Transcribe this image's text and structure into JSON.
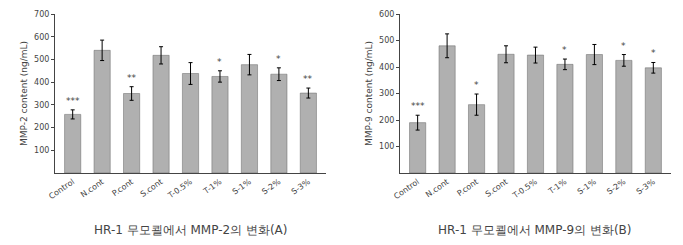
{
  "chart_data": [
    {
      "type": "bar",
      "title": "HR-1 무모쾰에서 MMP-2의 변화(A)",
      "y_label": "MMP-2 content (ng/mL)",
      "categories": [
        "Control",
        "N.cont",
        "P.cont",
        "S.cont",
        "T-0.5%",
        "T-1%",
        "S-1%",
        "S-2%",
        "S-3%"
      ],
      "values": [
        258,
        540,
        350,
        518,
        438,
        425,
        477,
        435,
        352
      ],
      "errors": [
        20,
        45,
        30,
        38,
        48,
        25,
        45,
        28,
        22
      ],
      "annotations": [
        "***",
        null,
        "**",
        null,
        null,
        "*",
        null,
        "*",
        "**"
      ],
      "color": "#b0b0b0",
      "ylim": [
        0,
        700
      ],
      "yticks": [
        100,
        200,
        300,
        400,
        500,
        600,
        700
      ],
      "grid": false
    },
    {
      "type": "bar",
      "title": "HR-1 무모쾰에서 MMP-9의 변화(B)",
      "y_label": "MMP-9 content (ng/mL)",
      "categories": [
        "Control",
        "N.cont",
        "P.cont",
        "S.cont",
        "T-0.5%",
        "T-1%",
        "S-1%",
        "S-2%",
        "S-3%"
      ],
      "values": [
        190,
        480,
        258,
        448,
        445,
        410,
        447,
        425,
        397
      ],
      "errors": [
        28,
        45,
        40,
        32,
        30,
        20,
        38,
        22,
        20
      ],
      "annotations": [
        "***",
        null,
        "*",
        null,
        null,
        "*",
        null,
        "*",
        "*"
      ],
      "color": "#b0b0b0",
      "ylim": [
        0,
        600
      ],
      "yticks": [
        100,
        200,
        300,
        400,
        500,
        600
      ],
      "grid": false
    }
  ]
}
